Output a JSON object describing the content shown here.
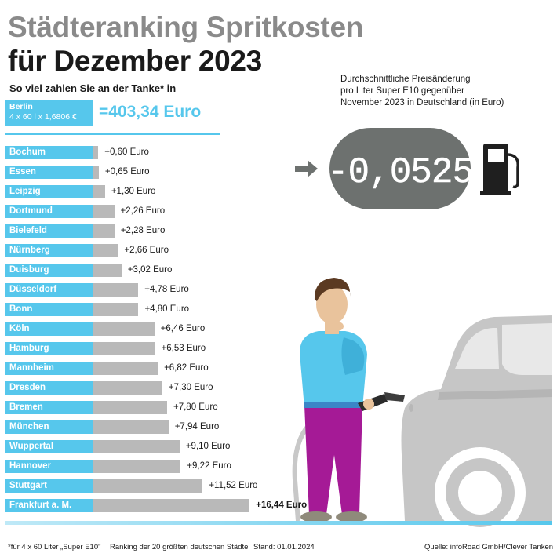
{
  "header": {
    "title_line1": "Städteranking Spritkosten",
    "title_line2": "für Dezember 2023",
    "subtitle": "So viel zahlen Sie an der Tanke* in"
  },
  "berlin": {
    "city": "Berlin",
    "formula": "4 x 60 l x 1,6806 €",
    "total": "=403,34 Euro"
  },
  "price_change": {
    "description_line1": "Durchschnittliche Preisänderung",
    "description_line2": "pro Liter Super E10 gegenüber",
    "description_line3": "November 2023 in Deutschland (in Euro)",
    "value": "-0,0525"
  },
  "chart_data": {
    "type": "bar",
    "title": "So viel zahlen Sie an der Tanke* in",
    "categories": [
      "Bochum",
      "Essen",
      "Leipzig",
      "Dortmund",
      "Bielefeld",
      "Nürnberg",
      "Duisburg",
      "Düsseldorf",
      "Bonn",
      "Köln",
      "Hamburg",
      "Mannheim",
      "Dresden",
      "Bremen",
      "München",
      "Wuppertal",
      "Hannover",
      "Stuttgart",
      "Frankfurt a. M."
    ],
    "values": [
      0.6,
      0.65,
      1.3,
      2.26,
      2.28,
      2.66,
      3.02,
      4.78,
      4.8,
      6.46,
      6.53,
      6.82,
      7.3,
      7.8,
      7.94,
      9.1,
      9.22,
      11.52,
      16.44
    ],
    "labels": [
      "+0,60 Euro",
      "+0,65 Euro",
      "+1,30 Euro",
      "+2,26 Euro",
      "+2,28 Euro",
      "+2,66 Euro",
      "+3,02 Euro",
      "+4,78 Euro",
      "+4,80 Euro",
      "+6,46 Euro",
      "+6,53 Euro",
      "+6,82 Euro",
      "+7,30 Euro",
      "+7,80 Euro",
      "+7,94 Euro",
      "+9,10 Euro",
      "+9,22 Euro",
      "+11,52 Euro",
      "+16,44 Euro"
    ],
    "highlight_index": 18,
    "colors": {
      "city": "#56c7ec",
      "bar": "#b9b9b9"
    }
  },
  "footer": {
    "note": "*für 4 x 60 Liter „Super E10\"",
    "ranking": "Ranking der 20 größten deutschen Städte",
    "date": "Stand: 01.01.2024",
    "source": "Quelle: infoRoad GmbH/Clever Tanken"
  },
  "icons": {
    "arrow": "arrow-right-icon",
    "pump": "fuel-pump-icon",
    "person": "person-with-fuel-nozzle",
    "car": "car-rear-silhouette"
  },
  "colors": {
    "accent": "#56c7ec",
    "bar": "#b9b9b9",
    "title_grey": "#8a8a8a",
    "dark_grey": "#6d716f"
  }
}
